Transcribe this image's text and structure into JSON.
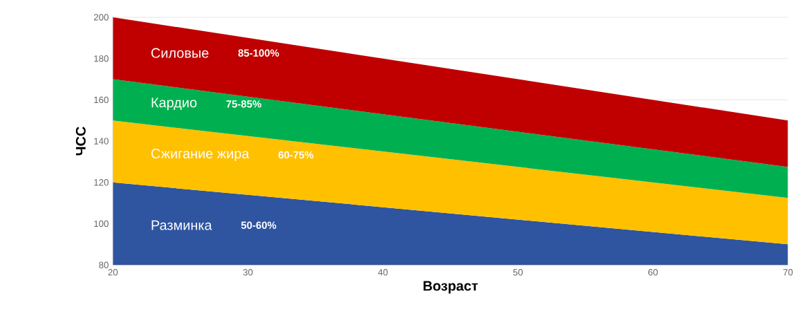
{
  "chart_data": {
    "type": "area",
    "xlabel": "Возраст",
    "ylabel": "ЧСС",
    "x": [
      20,
      70
    ],
    "series": [
      {
        "name": "Разминка",
        "color": "#2f55a0",
        "values": [
          120,
          90
        ]
      },
      {
        "name": "Сжигание жира",
        "color": "#ffc000",
        "values": [
          150,
          112.5
        ]
      },
      {
        "name": "Кардио",
        "color": "#00b050",
        "values": [
          170,
          127.5
        ]
      },
      {
        "name": "Силовые",
        "color": "#c00000",
        "values": [
          200,
          150
        ]
      }
    ],
    "annotations": [
      "50-60%",
      "60-75%",
      "75-85%",
      "85-100%"
    ],
    "xlim": [
      20,
      70
    ],
    "ylim": [
      80,
      200
    ],
    "xticks": [
      20,
      30,
      40,
      50,
      60,
      70
    ],
    "yticks": [
      80,
      100,
      120,
      140,
      160,
      180,
      200
    ],
    "grid": "y"
  }
}
